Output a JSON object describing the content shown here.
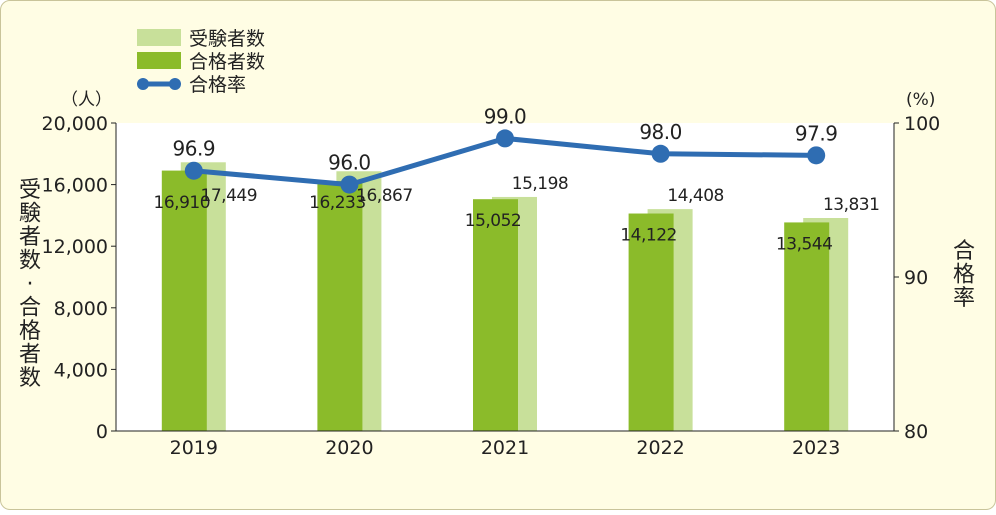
{
  "chart_data": {
    "type": "bar",
    "categories": [
      "2019",
      "2020",
      "2021",
      "2022",
      "2023"
    ],
    "series": [
      {
        "name": "受験者数",
        "type": "bar",
        "axis": "left",
        "values": [
          17449,
          16867,
          15198,
          14408,
          13831
        ],
        "color": "#c8e09a"
      },
      {
        "name": "合格者数",
        "type": "bar",
        "axis": "left",
        "values": [
          16910,
          16233,
          15052,
          14122,
          13544
        ],
        "color": "#8bbb2a"
      },
      {
        "name": "合格率",
        "type": "line",
        "axis": "right",
        "values": [
          96.9,
          96.0,
          99.0,
          98.0,
          97.9
        ],
        "color": "#2f6db2"
      }
    ],
    "left_axis": {
      "label": "受験者数・合格者数",
      "unit": "（人）",
      "range": [
        0,
        20000
      ],
      "ticks": [
        "0",
        "4,000",
        "8,000",
        "12,000",
        "16,000",
        "20,000"
      ]
    },
    "right_axis": {
      "label": "合格率",
      "unit": "(%)",
      "range": [
        80,
        100
      ],
      "ticks": [
        "80",
        "90",
        "100"
      ]
    },
    "legend_position": "top-left",
    "grid": false
  },
  "colors": {
    "background": "#fffde4",
    "plot_background": "#ffffff",
    "text": "#222222"
  }
}
